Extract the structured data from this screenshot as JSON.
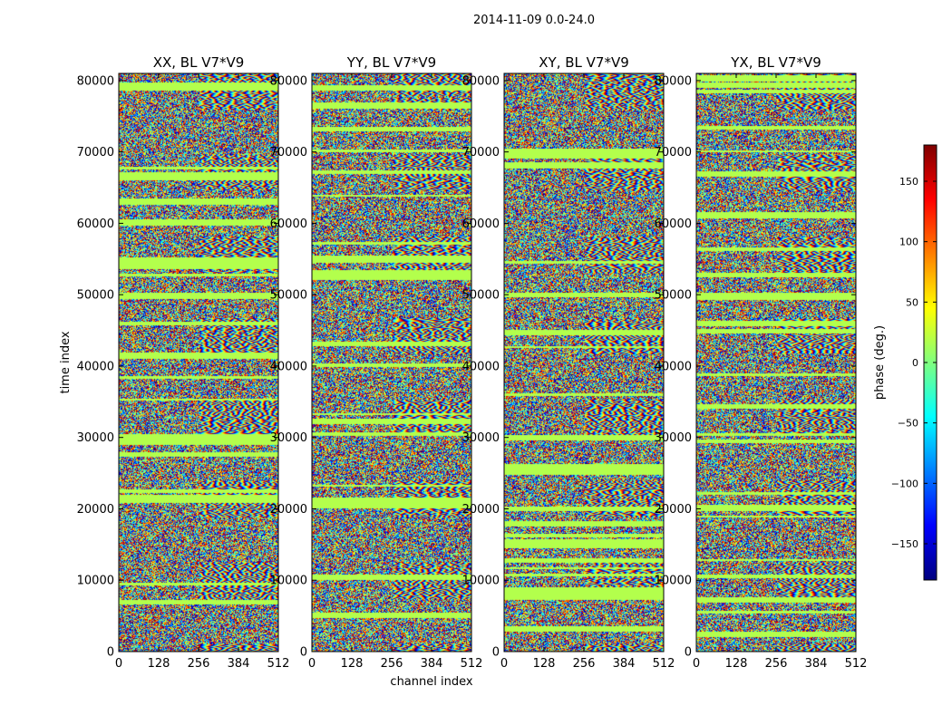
{
  "suptitle": "2014-11-09 0.0-24.0",
  "chart_data": {
    "type": "heatmap",
    "description_title": "2014-11-09 0.0-24.0",
    "xlabel": "channel index",
    "ylabel": "time index",
    "xlim": [
      0,
      512
    ],
    "ylim": [
      0,
      81000
    ],
    "xticks": [
      0,
      128,
      256,
      384,
      512
    ],
    "yticks": [
      0,
      10000,
      20000,
      30000,
      40000,
      50000,
      60000,
      70000,
      80000
    ],
    "panels": [
      {
        "title": "XX, BL V7*V9",
        "polarization": "XX",
        "baseline": "V7*V9"
      },
      {
        "title": "YY, BL V7*V9",
        "polarization": "YY",
        "baseline": "V7*V9"
      },
      {
        "title": "XY, BL V7*V9",
        "polarization": "XY",
        "baseline": "V7*V9"
      },
      {
        "title": "YX, BL V7*V9",
        "polarization": "YX",
        "baseline": "V7*V9"
      }
    ],
    "colorbar": {
      "label": "phase (deg.)",
      "range": [
        -180,
        180
      ],
      "ticks": [
        -150,
        -100,
        -50,
        0,
        50,
        100,
        150
      ],
      "colormap": "jet",
      "colors": [
        "#00007f",
        "#0000ff",
        "#007fff",
        "#00ffff",
        "#7fff7f",
        "#ffff00",
        "#ff7f00",
        "#ff0000",
        "#7f0000"
      ]
    }
  }
}
